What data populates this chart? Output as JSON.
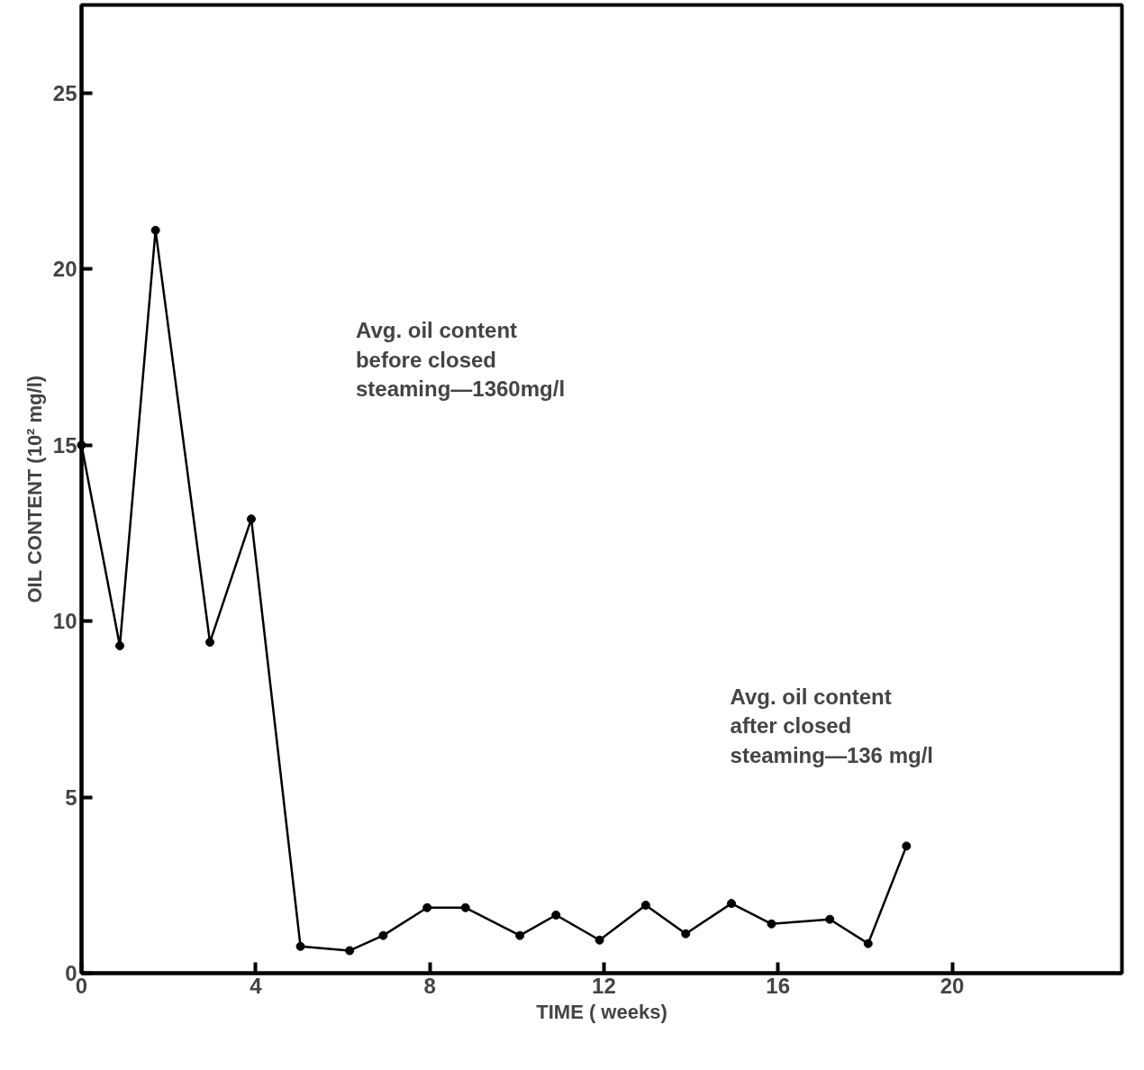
{
  "chart_data": {
    "type": "line",
    "xlabel": "TIME ( weeks)",
    "ylabel": "OIL CONTENT (10² mg/l)",
    "x": [
      0,
      0.88,
      1.7,
      2.95,
      3.9,
      5.03,
      6.16,
      6.93,
      7.94,
      8.82,
      10.07,
      10.9,
      11.9,
      12.96,
      13.88,
      14.93,
      15.85,
      17.19,
      18.07,
      18.95
    ],
    "series": [
      {
        "color": "#000000",
        "values": [
          15.0,
          9.3,
          21.1,
          9.4,
          12.9,
          0.76,
          0.64,
          1.07,
          1.86,
          1.86,
          1.07,
          1.65,
          0.94,
          1.93,
          1.12,
          1.98,
          1.4,
          1.53,
          0.84,
          3.61
        ]
      }
    ],
    "xlim": [
      0,
      23.9
    ],
    "ylim": [
      0,
      27.5
    ],
    "xticks": [
      0,
      4,
      8,
      12,
      16,
      20
    ],
    "yticks": [
      0,
      5,
      10,
      15,
      20,
      25
    ],
    "annotations": [
      "Avg. oil content\n before closed\n steaming—1360mg/l",
      "Avg. oil content\n after closed\n steaming—136 mg/l"
    ],
    "marker": "circle",
    "line_style": "solid",
    "grid": false
  }
}
